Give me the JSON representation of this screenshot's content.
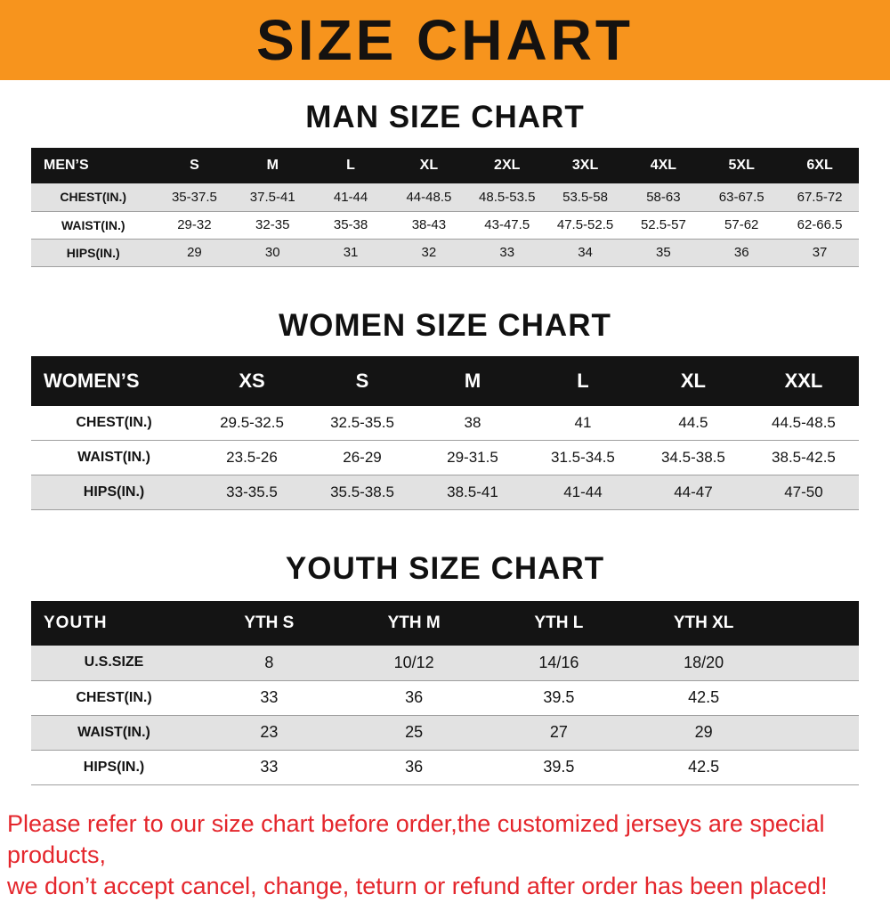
{
  "banner": {
    "title": "SIZE CHART",
    "bg_color": "#F7941D"
  },
  "sections": {
    "men": {
      "heading": "MAN SIZE CHART",
      "table": {
        "label": "MEN’S",
        "columns": [
          "S",
          "M",
          "L",
          "XL",
          "2XL",
          "3XL",
          "4XL",
          "5XL",
          "6XL"
        ],
        "rows": [
          {
            "label": "CHEST(IN.)",
            "values": [
              "35-37.5",
              "37.5-41",
              "41-44",
              "44-48.5",
              "48.5-53.5",
              "53.5-58",
              "58-63",
              "63-67.5",
              "67.5-72"
            ]
          },
          {
            "label": "WAIST(IN.)",
            "values": [
              "29-32",
              "32-35",
              "35-38",
              "38-43",
              "43-47.5",
              "47.5-52.5",
              "52.5-57",
              "57-62",
              "62-66.5"
            ]
          },
          {
            "label": "HIPS(IN.)",
            "values": [
              "29",
              "30",
              "31",
              "32",
              "33",
              "34",
              "35",
              "36",
              "37"
            ]
          }
        ]
      }
    },
    "women": {
      "heading": "WOMEN SIZE CHART",
      "table": {
        "label": "WOMEN’S",
        "columns": [
          "XS",
          "S",
          "M",
          "L",
          "XL",
          "XXL"
        ],
        "rows": [
          {
            "label": "CHEST(IN.)",
            "values": [
              "29.5-32.5",
              "32.5-35.5",
              "38",
              "41",
              "44.5",
              "44.5-48.5"
            ]
          },
          {
            "label": "WAIST(IN.)",
            "values": [
              "23.5-26",
              "26-29",
              "29-31.5",
              "31.5-34.5",
              "34.5-38.5",
              "38.5-42.5"
            ]
          },
          {
            "label": "HIPS(IN.)",
            "values": [
              "33-35.5",
              "35.5-38.5",
              "38.5-41",
              "41-44",
              "44-47",
              "47-50"
            ]
          }
        ]
      }
    },
    "youth": {
      "heading": "YOUTH SIZE CHART",
      "table": {
        "label": "YOUTH",
        "columns": [
          "YTH S",
          "YTH M",
          "YTH L",
          "YTH XL"
        ],
        "rows": [
          {
            "label": "U.S.SIZE",
            "values": [
              "8",
              "10/12",
              "14/16",
              "18/20"
            ]
          },
          {
            "label": "CHEST(IN.)",
            "values": [
              "33",
              "36",
              "39.5",
              "42.5"
            ]
          },
          {
            "label": "WAIST(IN.)",
            "values": [
              "23",
              "25",
              "27",
              "29"
            ]
          },
          {
            "label": "HIPS(IN.)",
            "values": [
              "33",
              "36",
              "39.5",
              "42.5"
            ]
          }
        ]
      }
    }
  },
  "footer": {
    "line1": "Please refer to our size chart before order,the customized jerseys are special products,",
    "line2": "we don’t accept cancel, change, teturn or refund after order has been placed!"
  }
}
